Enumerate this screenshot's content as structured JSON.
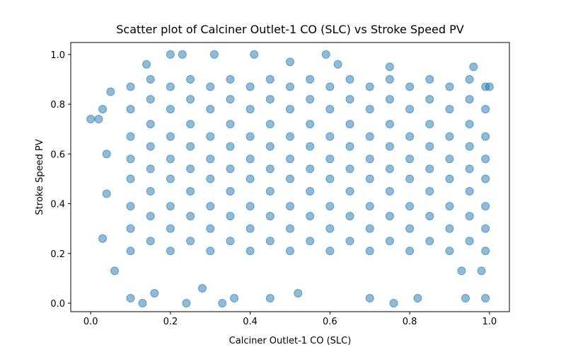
{
  "chart_data": {
    "type": "scatter",
    "title": "Scatter plot of Calciner Outlet-1 CO (SLC) vs Stroke Speed PV",
    "x_label": "Calciner Outlet-1 CO (SLC)",
    "y_label": "Stroke Speed PV",
    "color": "#1f77b4",
    "xlim": [
      -0.05,
      1.05
    ],
    "ylim": [
      -0.034,
      1.048
    ],
    "xticks": [
      {
        "value": 0,
        "label": "0.0"
      },
      0.2,
      0.4,
      0.6,
      0.8,
      {
        "value": 1,
        "label": "1.0"
      }
    ],
    "yticks": [
      {
        "value": 0,
        "label": "0.0"
      },
      0.2,
      0.4,
      0.6,
      0.8,
      {
        "value": 1,
        "label": "1.0"
      }
    ],
    "grid": false,
    "series": [
      {
        "name": "points",
        "x": [
          0.1,
          0.1,
          0.1,
          0.1,
          0.1,
          0.1,
          0.1,
          0.1,
          0.15,
          0.15,
          0.15,
          0.15,
          0.15,
          0.15,
          0.15,
          0.15,
          0.2,
          0.2,
          0.2,
          0.2,
          0.2,
          0.2,
          0.2,
          0.2,
          0.25,
          0.25,
          0.25,
          0.25,
          0.25,
          0.25,
          0.25,
          0.25,
          0.3,
          0.3,
          0.3,
          0.3,
          0.3,
          0.3,
          0.3,
          0.3,
          0.35,
          0.35,
          0.35,
          0.35,
          0.35,
          0.35,
          0.35,
          0.35,
          0.4,
          0.4,
          0.4,
          0.4,
          0.4,
          0.4,
          0.4,
          0.4,
          0.45,
          0.45,
          0.45,
          0.45,
          0.45,
          0.45,
          0.45,
          0.45,
          0.5,
          0.5,
          0.5,
          0.5,
          0.5,
          0.5,
          0.5,
          0.5,
          0.55,
          0.55,
          0.55,
          0.55,
          0.55,
          0.55,
          0.55,
          0.55,
          0.6,
          0.6,
          0.6,
          0.6,
          0.6,
          0.6,
          0.6,
          0.6,
          0.65,
          0.65,
          0.65,
          0.65,
          0.65,
          0.65,
          0.65,
          0.65,
          0.7,
          0.7,
          0.7,
          0.7,
          0.7,
          0.7,
          0.7,
          0.7,
          0.75,
          0.75,
          0.75,
          0.75,
          0.75,
          0.75,
          0.75,
          0.75,
          0.8,
          0.8,
          0.8,
          0.8,
          0.8,
          0.8,
          0.8,
          0.8,
          0.85,
          0.85,
          0.85,
          0.85,
          0.85,
          0.85,
          0.85,
          0.85,
          0.9,
          0.9,
          0.9,
          0.9,
          0.9,
          0.9,
          0.9,
          0.9,
          0.95,
          0.95,
          0.95,
          0.95,
          0.95,
          0.95,
          0.95,
          0.95,
          0.99,
          0.99,
          0.99,
          0.99,
          0.99,
          0.99,
          0.99,
          0.99,
          0.0,
          0.02,
          0.03,
          0.03,
          0.04,
          0.05,
          0.04,
          0.06,
          0.1,
          0.13,
          0.16,
          0.24,
          0.33,
          0.36,
          0.28,
          0.45,
          0.52,
          0.7,
          0.76,
          0.82,
          0.94,
          0.99,
          0.93,
          0.98,
          0.2,
          0.23,
          0.31,
          0.41,
          0.59,
          0.62,
          0.96,
          1.0,
          0.14,
          0.5,
          0.75
        ],
        "values": [
          0.21,
          0.3,
          0.39,
          0.5,
          0.58,
          0.67,
          0.78,
          0.87,
          0.25,
          0.35,
          0.45,
          0.54,
          0.63,
          0.72,
          0.82,
          0.9,
          0.21,
          0.3,
          0.39,
          0.5,
          0.58,
          0.67,
          0.78,
          0.87,
          0.25,
          0.35,
          0.45,
          0.54,
          0.63,
          0.72,
          0.82,
          0.9,
          0.21,
          0.3,
          0.39,
          0.5,
          0.58,
          0.67,
          0.78,
          0.87,
          0.25,
          0.35,
          0.45,
          0.54,
          0.63,
          0.72,
          0.82,
          0.9,
          0.21,
          0.3,
          0.39,
          0.5,
          0.58,
          0.67,
          0.78,
          0.87,
          0.25,
          0.35,
          0.45,
          0.54,
          0.63,
          0.72,
          0.82,
          0.9,
          0.21,
          0.3,
          0.39,
          0.5,
          0.58,
          0.67,
          0.78,
          0.87,
          0.25,
          0.35,
          0.45,
          0.54,
          0.63,
          0.72,
          0.82,
          0.9,
          0.21,
          0.3,
          0.39,
          0.5,
          0.58,
          0.67,
          0.78,
          0.87,
          0.25,
          0.35,
          0.45,
          0.54,
          0.63,
          0.72,
          0.82,
          0.9,
          0.21,
          0.3,
          0.39,
          0.5,
          0.58,
          0.67,
          0.78,
          0.87,
          0.25,
          0.35,
          0.45,
          0.54,
          0.63,
          0.72,
          0.82,
          0.9,
          0.21,
          0.3,
          0.39,
          0.5,
          0.58,
          0.67,
          0.78,
          0.87,
          0.25,
          0.35,
          0.45,
          0.54,
          0.63,
          0.72,
          0.82,
          0.9,
          0.21,
          0.3,
          0.39,
          0.5,
          0.58,
          0.67,
          0.78,
          0.87,
          0.25,
          0.35,
          0.45,
          0.54,
          0.63,
          0.72,
          0.82,
          0.9,
          0.21,
          0.3,
          0.39,
          0.5,
          0.58,
          0.67,
          0.78,
          0.87,
          0.74,
          0.74,
          0.78,
          0.26,
          0.44,
          0.85,
          0.6,
          0.13,
          0.02,
          0.0,
          0.04,
          0.0,
          0.0,
          0.02,
          0.06,
          0.02,
          0.04,
          0.02,
          0.0,
          0.02,
          0.02,
          0.02,
          0.13,
          0.13,
          1.0,
          1.0,
          1.0,
          1.0,
          1.0,
          0.96,
          0.95,
          0.87,
          0.96,
          0.97,
          0.95
        ]
      }
    ]
  }
}
